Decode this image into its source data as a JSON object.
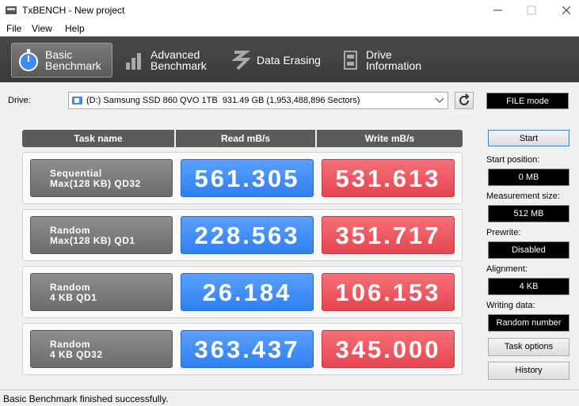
{
  "window": {
    "title": "TxBENCH - New project"
  },
  "menu": [
    "File",
    "View",
    "Help"
  ],
  "tabs": [
    [
      "Basic",
      "Benchmark"
    ],
    [
      "Advanced",
      "Benchmark"
    ],
    [
      "Data Erasing"
    ],
    [
      "Drive",
      "Information"
    ]
  ],
  "drive": {
    "label": "Drive:",
    "selected": "(D:) Samsung SSD 860 QVO 1TB  931.49 GB (1,953,488,896 Sectors)",
    "mode": "FILE mode"
  },
  "table": {
    "headers": [
      "Task name",
      "Read mB/s",
      "Write mB/s"
    ],
    "rows": [
      {
        "task": [
          "Sequential",
          "Max(128 KB) QD32"
        ],
        "read": "561.305",
        "write": "531.613"
      },
      {
        "task": [
          "Random",
          "Max(128 KB) QD1"
        ],
        "read": "228.563",
        "write": "351.717"
      },
      {
        "task": [
          "Random",
          "4 KB QD1"
        ],
        "read": "26.184",
        "write": "106.153"
      },
      {
        "task": [
          "Random",
          "4 KB QD32"
        ],
        "read": "363.437",
        "write": "345.000"
      }
    ]
  },
  "settings": {
    "start": "Start",
    "fields": [
      {
        "label": "Start position:",
        "value": "0 MB"
      },
      {
        "label": "Measurement size:",
        "value": "512 MB"
      },
      {
        "label": "Prewrite:",
        "value": "Disabled"
      },
      {
        "label": "Alignment:",
        "value": "4 KB"
      },
      {
        "label": "Writing data:",
        "value": "Random number"
      }
    ],
    "task_options": "Task options",
    "history": "History"
  },
  "status": "Basic Benchmark finished successfully."
}
